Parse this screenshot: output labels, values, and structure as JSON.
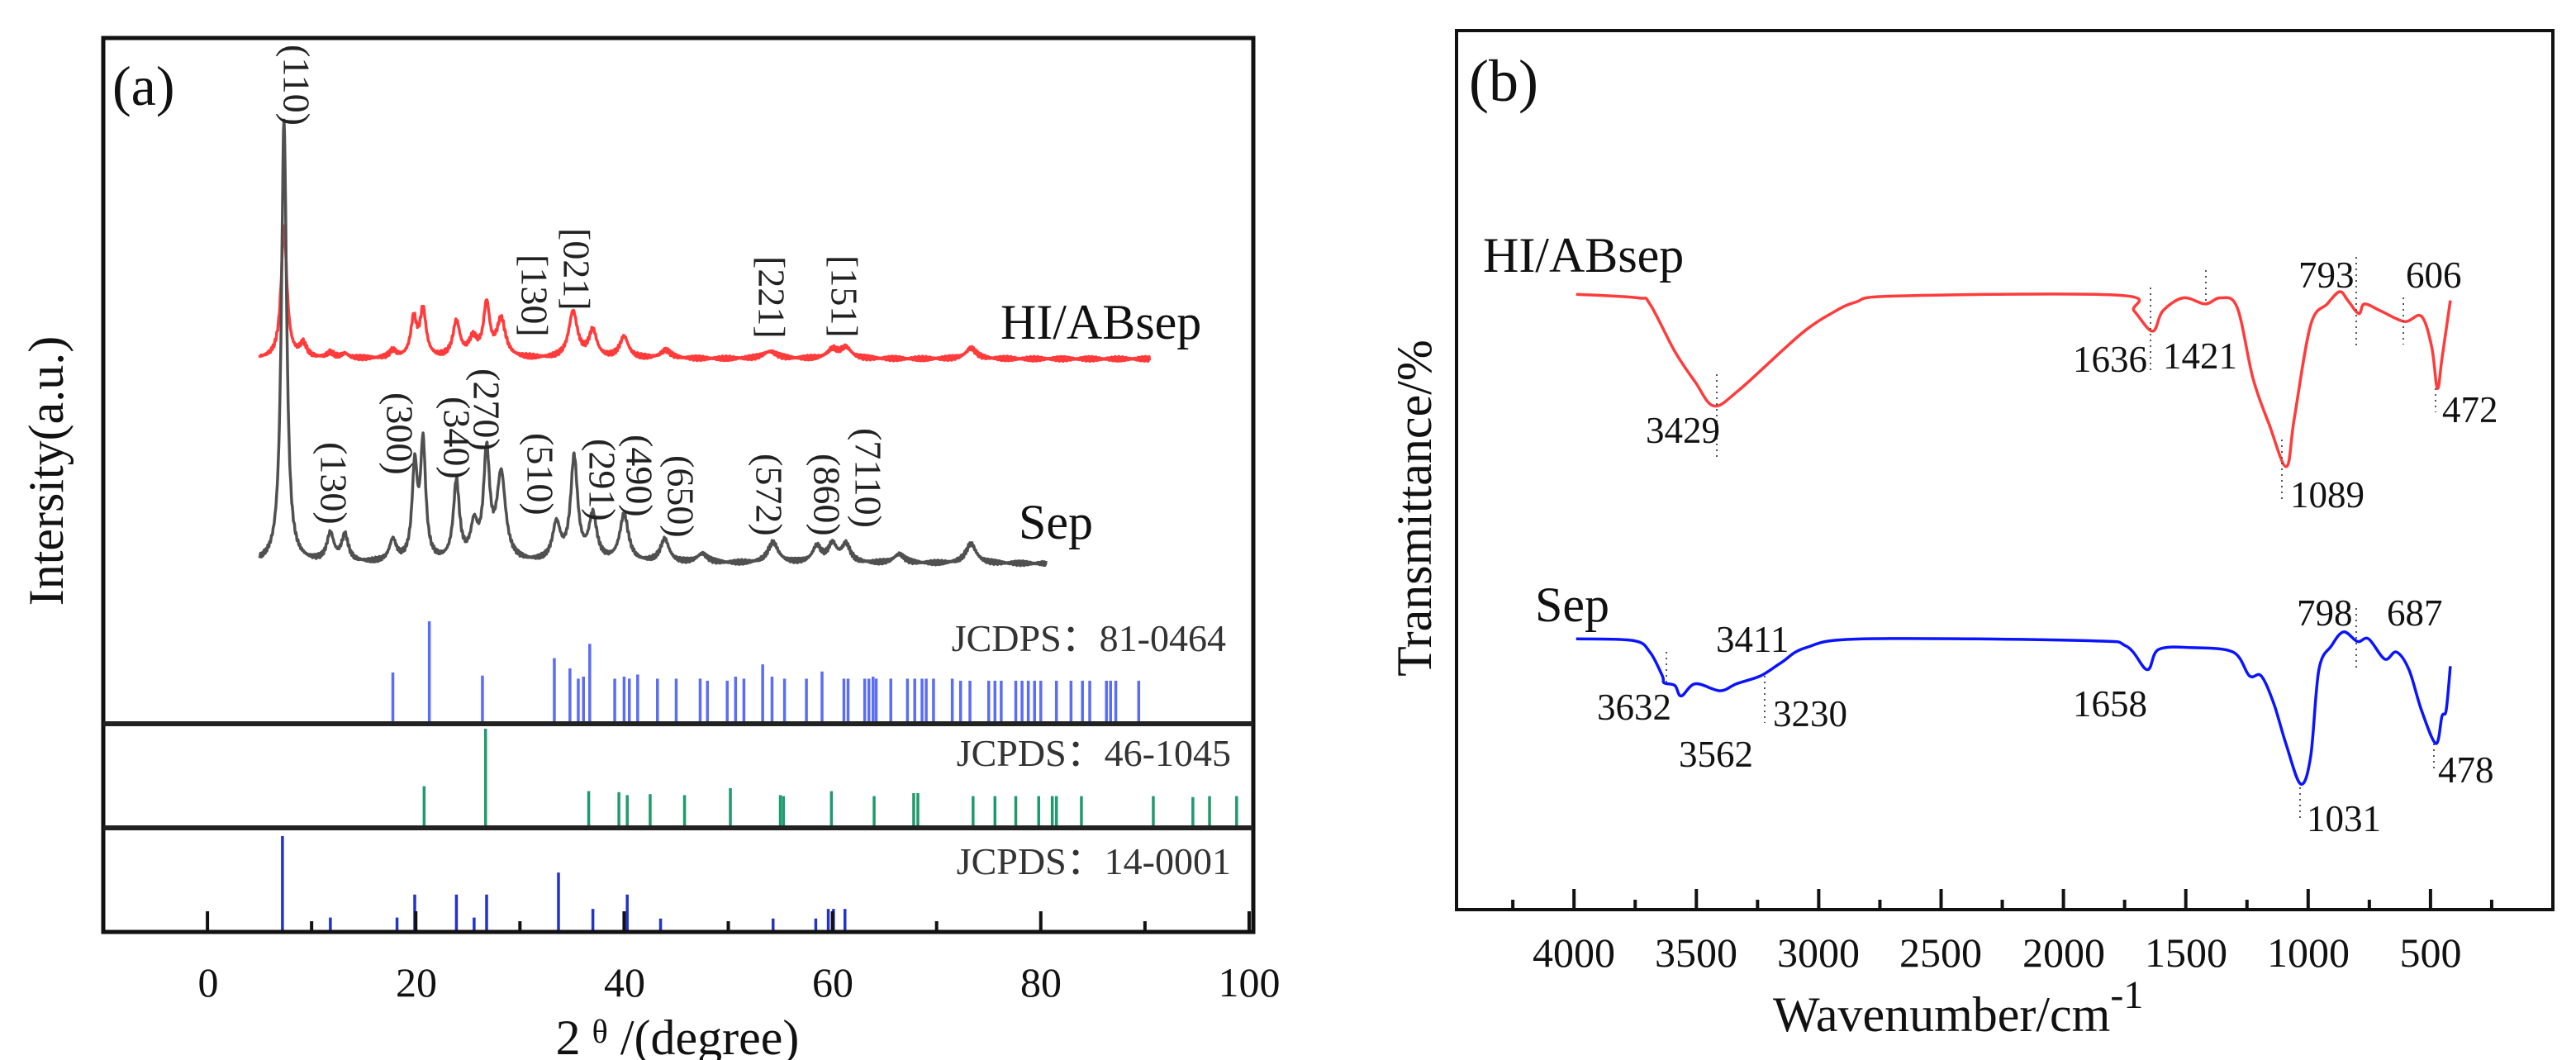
{
  "chart_data": [
    {
      "panel_label": "(a)",
      "type": "line",
      "xlabel_prefix": "2",
      "xlabel_symbol": "θ",
      "xlabel_suffix": " /(degree)",
      "ylabel": "Intersity(a.u.)",
      "xlim": [
        -10,
        100.4
      ],
      "ylim": [
        0,
        1000
      ],
      "xtick_labels": [
        "0",
        "20",
        "40",
        "60",
        "80",
        "100"
      ],
      "xticks_major": [
        0,
        20,
        40,
        60,
        80,
        100
      ],
      "xticks_minor": [
        10,
        30,
        50,
        70,
        90
      ],
      "series": [
        {
          "name": "HI/ABsep",
          "color": "#ff3b3b",
          "range": [
            5,
            90.5
          ],
          "baseline": 641,
          "peaks": [
            [
              7.35,
              146,
              0.33
            ],
            [
              9.2,
              15,
              0.4
            ],
            [
              11.8,
              6,
              0.4
            ],
            [
              13.2,
              5,
              0.4
            ],
            [
              17.8,
              8,
              0.4
            ],
            [
              19.8,
              42,
              0.35
            ],
            [
              20.7,
              52,
              0.35
            ],
            [
              23.9,
              40,
              0.4
            ],
            [
              25.5,
              20,
              0.5
            ],
            [
              26.8,
              58,
              0.35
            ],
            [
              28.2,
              42,
              0.5
            ],
            [
              35.1,
              52,
              0.5
            ],
            [
              37.0,
              30,
              0.45
            ],
            [
              40.0,
              24,
              0.5
            ],
            [
              44.0,
              9,
              0.6
            ],
            [
              54.0,
              8,
              0.8
            ],
            [
              60.0,
              10,
              0.6
            ],
            [
              61.3,
              12,
              0.6
            ],
            [
              73.3,
              12,
              0.6
            ]
          ]
        },
        {
          "name": "Sep",
          "color": "#505050",
          "range": [
            5,
            80.5
          ],
          "baseline": 412,
          "peaks": [
            [
              7.35,
              496,
              0.3
            ],
            [
              11.8,
              31,
              0.4
            ],
            [
              13.2,
              29,
              0.4
            ],
            [
              17.8,
              24,
              0.4
            ],
            [
              19.9,
              103,
              0.3
            ],
            [
              20.7,
              129,
              0.3
            ],
            [
              23.9,
              88,
              0.35
            ],
            [
              25.6,
              37,
              0.4
            ],
            [
              26.8,
              118,
              0.35
            ],
            [
              28.2,
              96,
              0.5
            ],
            [
              33.5,
              41,
              0.45
            ],
            [
              35.2,
              115,
              0.4
            ],
            [
              37.0,
              51,
              0.45
            ],
            [
              40.0,
              53,
              0.5
            ],
            [
              43.9,
              26,
              0.5
            ],
            [
              47.5,
              10,
              0.6
            ],
            [
              54.3,
              23,
              0.6
            ],
            [
              58.5,
              18,
              0.5
            ],
            [
              60.0,
              20,
              0.5
            ],
            [
              61.3,
              20,
              0.5
            ],
            [
              66.4,
              10,
              0.6
            ],
            [
              73.3,
              22,
              0.6
            ]
          ]
        }
      ],
      "peak_labels_sep": [
        "(110)",
        "(130)",
        "(300)",
        "(340)",
        "(270)",
        "(510)",
        "(291)",
        "(490)",
        "(650)",
        "(572)",
        "(860)",
        "(7110)"
      ],
      "peak_labels_hi": [
        "[130]",
        "[021]",
        "[221]",
        "[151]"
      ],
      "references": [
        {
          "name": "JCDPS：81-0464",
          "color": "#5b6cf5",
          "sticks": [
            [
              17.8,
              0.5
            ],
            [
              21.3,
              1
            ],
            [
              26.4,
              0.47
            ],
            [
              33.3,
              0.64
            ],
            [
              34.8,
              0.54
            ],
            [
              35.6,
              0.44
            ],
            [
              36.1,
              0.46
            ],
            [
              36.7,
              0.78
            ],
            [
              39.1,
              0.44
            ],
            [
              40.0,
              0.46
            ],
            [
              40.5,
              0.44
            ],
            [
              41.3,
              0.48
            ],
            [
              43.2,
              0.44
            ],
            [
              45.0,
              0.44
            ],
            [
              47.3,
              0.44
            ],
            [
              48.0,
              0.42
            ],
            [
              49.9,
              0.42
            ],
            [
              50.7,
              0.46
            ],
            [
              51.5,
              0.44
            ],
            [
              53.3,
              0.58
            ],
            [
              54.2,
              0.46
            ],
            [
              55.4,
              0.44
            ],
            [
              57.5,
              0.44
            ],
            [
              59.0,
              0.51
            ],
            [
              61.1,
              0.44
            ],
            [
              61.5,
              0.44
            ],
            [
              63.1,
              0.44
            ],
            [
              63.5,
              0.44
            ],
            [
              63.9,
              0.46
            ],
            [
              64.2,
              0.44
            ],
            [
              65.6,
              0.44
            ],
            [
              67.2,
              0.44
            ],
            [
              67.9,
              0.44
            ],
            [
              68.6,
              0.44
            ],
            [
              69.0,
              0.44
            ],
            [
              69.7,
              0.44
            ],
            [
              71.5,
              0.44
            ],
            [
              72.3,
              0.42
            ],
            [
              73.2,
              0.42
            ],
            [
              75.0,
              0.42
            ],
            [
              75.6,
              0.42
            ],
            [
              76.2,
              0.42
            ],
            [
              77.6,
              0.42
            ],
            [
              78.2,
              0.42
            ],
            [
              78.8,
              0.42
            ],
            [
              79.4,
              0.42
            ],
            [
              80.0,
              0.42
            ],
            [
              81.5,
              0.42
            ],
            [
              82.9,
              0.42
            ],
            [
              84.0,
              0.42
            ],
            [
              84.7,
              0.42
            ],
            [
              86.3,
              0.42
            ],
            [
              86.7,
              0.42
            ],
            [
              87.2,
              0.42
            ],
            [
              89.4,
              0.42
            ]
          ]
        },
        {
          "name": "JCPDS：46-1045",
          "color": "#1f9a6c",
          "sticks": [
            [
              20.8,
              0.42
            ],
            [
              26.7,
              1
            ],
            [
              36.6,
              0.37
            ],
            [
              39.5,
              0.36
            ],
            [
              40.3,
              0.33
            ],
            [
              42.5,
              0.34
            ],
            [
              45.8,
              0.33
            ],
            [
              50.2,
              0.4
            ],
            [
              55.0,
              0.33
            ],
            [
              55.3,
              0.32
            ],
            [
              59.9,
              0.37
            ],
            [
              64.0,
              0.32
            ],
            [
              67.8,
              0.35
            ],
            [
              68.2,
              0.35
            ],
            [
              73.5,
              0.32
            ],
            [
              75.6,
              0.32
            ],
            [
              77.6,
              0.32
            ],
            [
              79.8,
              0.32
            ],
            [
              81.1,
              0.32
            ],
            [
              81.5,
              0.32
            ],
            [
              83.9,
              0.32
            ],
            [
              90.8,
              0.32
            ],
            [
              94.6,
              0.31
            ],
            [
              96.2,
              0.32
            ],
            [
              98.8,
              0.32
            ]
          ]
        },
        {
          "name": "JCPDS：14-0001",
          "color": "#2233cc",
          "sticks": [
            [
              7.2,
              1
            ],
            [
              11.8,
              0.15
            ],
            [
              18.2,
              0.15
            ],
            [
              19.9,
              0.39
            ],
            [
              23.9,
              0.39
            ],
            [
              25.6,
              0.15
            ],
            [
              26.8,
              0.39
            ],
            [
              33.7,
              0.62
            ],
            [
              37.0,
              0.24
            ],
            [
              40.3,
              0.39
            ],
            [
              43.5,
              0.14
            ],
            [
              54.3,
              0.14
            ],
            [
              58.4,
              0.14
            ],
            [
              59.6,
              0.24
            ],
            [
              60.1,
              0.24
            ],
            [
              61.2,
              0.24
            ]
          ]
        }
      ]
    },
    {
      "panel_label": "(b)",
      "type": "line",
      "xlabel": "Wavenumber/cm",
      "xlabel_sup": "-1",
      "ylabel": "Transmittance/%",
      "xlim": [
        4480,
        0
      ],
      "ylim": [
        0,
        100
      ],
      "xtick_labels": [
        "4000",
        "3500",
        "3000",
        "2500",
        "2000",
        "1500",
        "1000",
        "500"
      ],
      "xticks_major": [
        4000,
        3500,
        3000,
        2500,
        2000,
        1500,
        1000,
        500
      ],
      "xticks_minor": [
        4250,
        3750,
        3250,
        2750,
        2250,
        1750,
        1250,
        750,
        250
      ],
      "series": [
        {
          "name": "HI/ABsep",
          "color": "#ff3b3b",
          "points": [
            [
              3991,
              70.0
            ],
            [
              3740,
              69.6
            ],
            [
              3690,
              68.9
            ],
            [
              3588,
              63.5
            ],
            [
              3504,
              60.0
            ],
            [
              3429,
              57.3
            ],
            [
              3330,
              59.0
            ],
            [
              3153,
              63.5
            ],
            [
              3050,
              66.0
            ],
            [
              2950,
              67.8
            ],
            [
              2850,
              69.1
            ],
            [
              2684,
              69.8
            ],
            [
              1776,
              69.9
            ],
            [
              1711,
              68.1
            ],
            [
              1636,
              65.8
            ],
            [
              1594,
              68.1
            ],
            [
              1510,
              69.6
            ],
            [
              1421,
              68.9
            ],
            [
              1358,
              69.6
            ],
            [
              1290,
              68.5
            ],
            [
              1225,
              60.4
            ],
            [
              1158,
              55.1
            ],
            [
              1089,
              50.4
            ],
            [
              1057,
              55.8
            ],
            [
              990,
              66.5
            ],
            [
              922,
              68.9
            ],
            [
              871,
              70.3
            ],
            [
              838,
              69.3
            ],
            [
              793,
              67.8
            ],
            [
              770,
              68.9
            ],
            [
              703,
              68.1
            ],
            [
              606,
              66.9
            ],
            [
              537,
              67.5
            ],
            [
              495,
              64.0
            ],
            [
              472,
              59.3
            ],
            [
              453,
              62.7
            ],
            [
              419,
              69.3
            ]
          ]
        },
        {
          "name": "Sep",
          "color": "#0a14ff",
          "points": [
            [
              3991,
              30.8
            ],
            [
              3757,
              30.6
            ],
            [
              3690,
              29.3
            ],
            [
              3639,
              26.6
            ],
            [
              3632,
              25.8
            ],
            [
              3588,
              25.5
            ],
            [
              3562,
              24.3
            ],
            [
              3504,
              25.7
            ],
            [
              3403,
              24.9
            ],
            [
              3336,
              25.7
            ],
            [
              3237,
              26.6
            ],
            [
              3153,
              28.1
            ],
            [
              3052,
              29.8
            ],
            [
              2819,
              30.8
            ],
            [
              1911,
              30.6
            ],
            [
              1745,
              30.0
            ],
            [
              1658,
              27.3
            ],
            [
              1611,
              29.6
            ],
            [
              1476,
              29.8
            ],
            [
              1307,
              29.3
            ],
            [
              1240,
              26.6
            ],
            [
              1192,
              26.6
            ],
            [
              1141,
              23.5
            ],
            [
              1091,
              18.9
            ],
            [
              1031,
              14.3
            ],
            [
              990,
              17.4
            ],
            [
              956,
              27.3
            ],
            [
              905,
              30.0
            ],
            [
              855,
              31.6
            ],
            [
              798,
              30.5
            ],
            [
              753,
              30.8
            ],
            [
              687,
              28.5
            ],
            [
              639,
              29.3
            ],
            [
              588,
              27.3
            ],
            [
              537,
              22.7
            ],
            [
              478,
              18.9
            ],
            [
              453,
              22.0
            ],
            [
              436,
              22.7
            ],
            [
              419,
              27.7
            ]
          ]
        }
      ],
      "annotations_hi": [
        "3429",
        "1636",
        "1421",
        "793",
        "606",
        "1089",
        "472"
      ],
      "annotations_sep": [
        "3632",
        "3562",
        "3411",
        "3230",
        "1658",
        "798",
        "687",
        "1031",
        "478"
      ]
    }
  ]
}
